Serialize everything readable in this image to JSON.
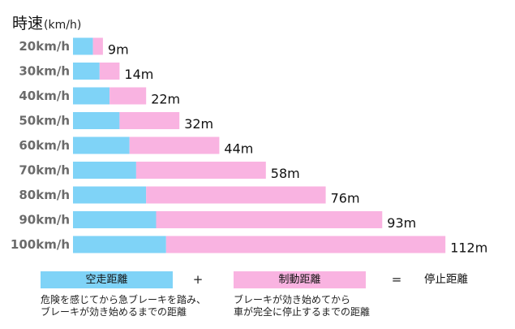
{
  "chart_data": {
    "type": "bar",
    "orientation": "horizontal",
    "stacked": true,
    "ylabel": "時速",
    "ylabel_unit": "(km/h)",
    "categories": [
      "20km/h",
      "30km/h",
      "40km/h",
      "50km/h",
      "60km/h",
      "70km/h",
      "80km/h",
      "90km/h",
      "100km/h"
    ],
    "series": [
      {
        "name": "空走距離",
        "color": "#7fd3f7",
        "values": [
          6,
          8,
          11,
          14,
          17,
          19,
          22,
          25,
          28
        ]
      },
      {
        "name": "制動距離",
        "color": "#f9b3e1",
        "values": [
          3,
          6,
          11,
          18,
          27,
          39,
          54,
          68,
          84
        ]
      }
    ],
    "totals": [
      9,
      14,
      22,
      32,
      44,
      58,
      76,
      93,
      112
    ],
    "total_labels": [
      "9m",
      "14m",
      "22m",
      "32m",
      "44m",
      "58m",
      "76m",
      "93m",
      "112m"
    ],
    "grid": false,
    "legend": {
      "placement": "bottom",
      "plus": "+",
      "equals": "=",
      "result_label": "停止距離",
      "notes": [
        [
          "危険を感じてから急ブレーキを踏み、",
          "ブレーキが効き始めるまでの距離"
        ],
        [
          "ブレーキが効き始めてから",
          "車が完全に停止するまでの距離"
        ]
      ]
    }
  }
}
